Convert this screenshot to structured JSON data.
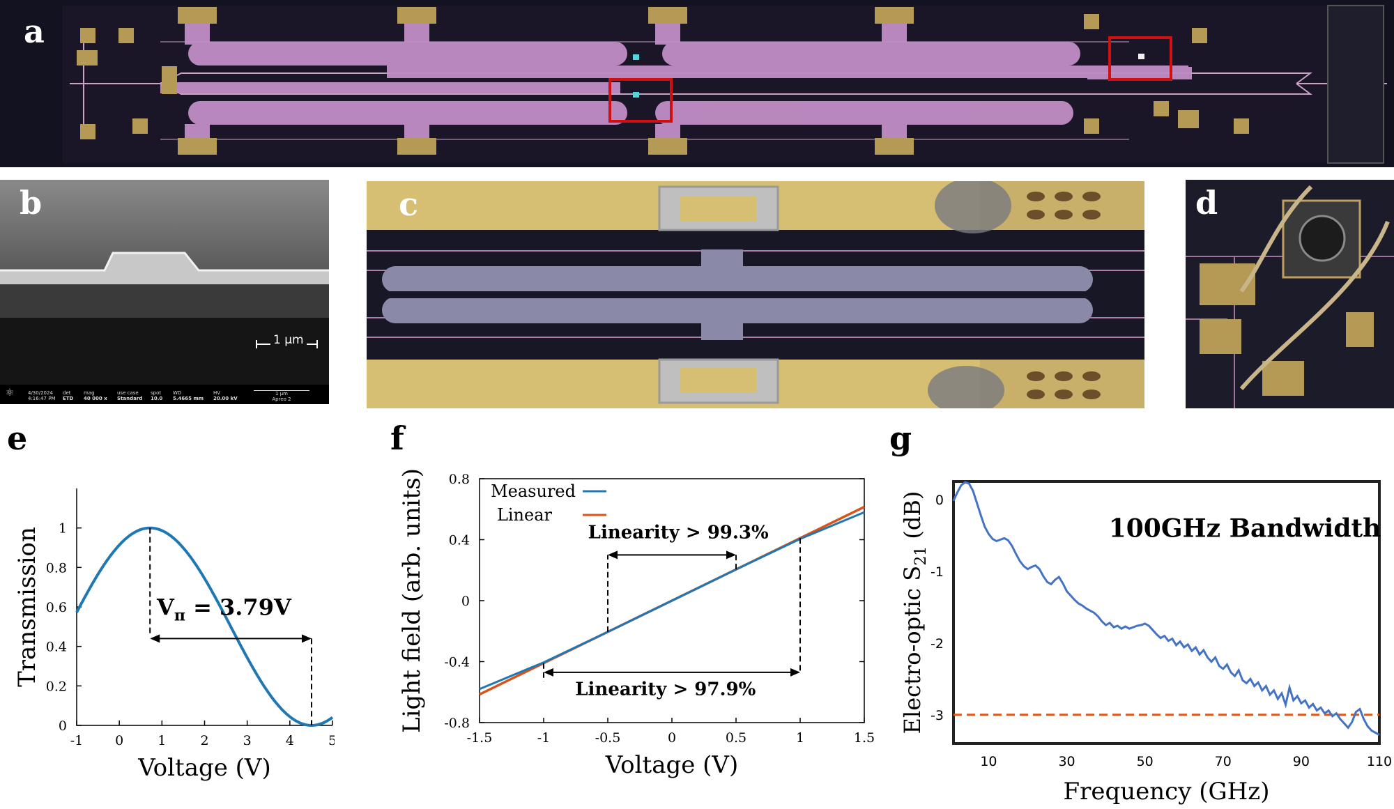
{
  "panels": {
    "a": {
      "label": "a"
    },
    "b": {
      "label": "b",
      "scale_bar": "1 μm",
      "sem_bar": {
        "date": "4/30/2024",
        "time": "4:16:47 PM",
        "det_label": "det",
        "det_value": "ETD",
        "mag_label": "mag",
        "mag_value": "40 000 x",
        "usecase_label": "use case",
        "usecase_value": "Standard",
        "spot_label": "spot",
        "spot_value": "10.0",
        "wd_label": "WD",
        "wd_value": "5.4665 mm",
        "hv_label": "HV",
        "hv_value": "20.00 kV",
        "scale_value": "1 μm",
        "brand": "Apreo 2"
      }
    },
    "c": {
      "label": "c"
    },
    "d": {
      "label": "d"
    }
  },
  "colors": {
    "blue": "#1f77b4",
    "orange": "#d95319",
    "g_blue": "#4472c4",
    "g_dash": "#e0571a"
  },
  "chart_data": [
    {
      "id": "e",
      "label": "e",
      "type": "line",
      "xlabel": "Voltage (V)",
      "ylabel": "Transmission",
      "xlim": [
        -1,
        5
      ],
      "ylim": [
        0,
        1.2
      ],
      "xticks": [
        -1,
        0,
        1,
        2,
        3,
        4,
        5
      ],
      "yticks": [
        0,
        0.2,
        0.4,
        0.6,
        0.8,
        1
      ],
      "ytick_labels": [
        "0",
        "0.2",
        "0.4",
        "0.6",
        "0.8",
        "1"
      ],
      "xtick_labels": [
        "-1",
        "0",
        "1",
        "2",
        "3",
        "4",
        "5"
      ],
      "curve": {
        "model": "0.5*(1+cos(pi*(V-V0)/Vpi))",
        "V0": 0.72,
        "Vpi": 3.79
      },
      "markers": [
        0.72,
        4.51
      ],
      "annotation": {
        "v_sym": "V",
        "v_sub": "π",
        "value": " = 3.79V"
      }
    },
    {
      "id": "f",
      "label": "f",
      "type": "line",
      "xlabel": "Voltage (V)",
      "ylabel": "Light field (arb. units)",
      "xlim": [
        -1.5,
        1.5
      ],
      "ylim": [
        -0.8,
        0.8
      ],
      "xticks": [
        -1.5,
        -1,
        -0.5,
        0,
        0.5,
        1,
        1.5
      ],
      "xtick_labels": [
        "-1.5",
        "-1",
        "-0.5",
        "0",
        "0.5",
        "1",
        "1.5"
      ],
      "yticks": [
        -0.8,
        -0.4,
        0,
        0.4,
        0.8
      ],
      "ytick_labels": [
        "-0.8",
        "-0.4",
        "0",
        "0.4",
        "0.8"
      ],
      "series": [
        {
          "name": "Measured",
          "points": [
            [
              -1.5,
              -0.58
            ],
            [
              -1.0,
              -0.405
            ],
            [
              -0.5,
              -0.205
            ],
            [
              0,
              0.0
            ],
            [
              0.5,
              0.205
            ],
            [
              1.0,
              0.405
            ],
            [
              1.5,
              0.58
            ]
          ]
        },
        {
          "name": "Linear",
          "points": [
            [
              -1.5,
              -0.615
            ],
            [
              1.5,
              0.615
            ]
          ]
        }
      ],
      "annotations": [
        {
          "text": "Linearity > 99.3%",
          "x_from": -0.5,
          "x_to": 0.5
        },
        {
          "text": "Linearity > 97.9%",
          "x_from": -1.0,
          "x_to": 1.0
        }
      ]
    },
    {
      "id": "g",
      "label": "g",
      "type": "line",
      "xlabel": "Frequency (GHz)",
      "ylabel_main": "Electro-optic S",
      "ylabel_sub": "21",
      "ylabel_unit": " (dB)",
      "xlim": [
        1,
        110
      ],
      "ylim": [
        -3.4,
        0.25
      ],
      "xticks": [
        10,
        30,
        50,
        70,
        90,
        110
      ],
      "xtick_labels": [
        "10",
        "30",
        "50",
        "70",
        "90",
        "110"
      ],
      "yticks": [
        0,
        -1,
        -2,
        -3
      ],
      "ytick_labels": [
        "0",
        "-1",
        "-2",
        "-3"
      ],
      "threshold": -3,
      "annotation": "100GHz Bandwidth",
      "series": [
        {
          "name": "S21",
          "points": [
            [
              1,
              -0.02
            ],
            [
              2,
              0.1
            ],
            [
              3,
              0.2
            ],
            [
              4,
              0.24
            ],
            [
              5,
              0.22
            ],
            [
              6,
              0.12
            ],
            [
              7,
              -0.05
            ],
            [
              8,
              -0.22
            ],
            [
              9,
              -0.38
            ],
            [
              10,
              -0.48
            ],
            [
              11,
              -0.55
            ],
            [
              12,
              -0.58
            ],
            [
              13,
              -0.56
            ],
            [
              14,
              -0.54
            ],
            [
              15,
              -0.57
            ],
            [
              16,
              -0.65
            ],
            [
              17,
              -0.76
            ],
            [
              18,
              -0.86
            ],
            [
              19,
              -0.93
            ],
            [
              20,
              -0.97
            ],
            [
              21,
              -0.94
            ],
            [
              22,
              -0.92
            ],
            [
              23,
              -0.97
            ],
            [
              24,
              -1.07
            ],
            [
              25,
              -1.15
            ],
            [
              26,
              -1.18
            ],
            [
              27,
              -1.12
            ],
            [
              28,
              -1.08
            ],
            [
              29,
              -1.17
            ],
            [
              30,
              -1.28
            ],
            [
              31,
              -1.34
            ],
            [
              32,
              -1.4
            ],
            [
              33,
              -1.45
            ],
            [
              34,
              -1.48
            ],
            [
              35,
              -1.52
            ],
            [
              36,
              -1.55
            ],
            [
              37,
              -1.58
            ],
            [
              38,
              -1.63
            ],
            [
              39,
              -1.7
            ],
            [
              40,
              -1.75
            ],
            [
              41,
              -1.72
            ],
            [
              42,
              -1.78
            ],
            [
              43,
              -1.76
            ],
            [
              44,
              -1.8
            ],
            [
              45,
              -1.77
            ],
            [
              46,
              -1.8
            ],
            [
              47,
              -1.78
            ],
            [
              48,
              -1.76
            ],
            [
              49,
              -1.75
            ],
            [
              50,
              -1.73
            ],
            [
              51,
              -1.76
            ],
            [
              52,
              -1.82
            ],
            [
              53,
              -1.88
            ],
            [
              54,
              -1.93
            ],
            [
              55,
              -1.9
            ],
            [
              56,
              -1.97
            ],
            [
              57,
              -1.94
            ],
            [
              58,
              -2.03
            ],
            [
              59,
              -1.98
            ],
            [
              60,
              -2.06
            ],
            [
              61,
              -2.02
            ],
            [
              62,
              -2.11
            ],
            [
              63,
              -2.06
            ],
            [
              64,
              -2.16
            ],
            [
              65,
              -2.1
            ],
            [
              66,
              -2.2
            ],
            [
              67,
              -2.26
            ],
            [
              68,
              -2.2
            ],
            [
              69,
              -2.32
            ],
            [
              70,
              -2.36
            ],
            [
              71,
              -2.3
            ],
            [
              72,
              -2.41
            ],
            [
              73,
              -2.46
            ],
            [
              74,
              -2.38
            ],
            [
              75,
              -2.52
            ],
            [
              76,
              -2.56
            ],
            [
              77,
              -2.5
            ],
            [
              78,
              -2.6
            ],
            [
              79,
              -2.55
            ],
            [
              80,
              -2.66
            ],
            [
              81,
              -2.6
            ],
            [
              82,
              -2.72
            ],
            [
              83,
              -2.66
            ],
            [
              84,
              -2.78
            ],
            [
              85,
              -2.7
            ],
            [
              86,
              -2.86
            ],
            [
              87,
              -2.62
            ],
            [
              88,
              -2.8
            ],
            [
              89,
              -2.74
            ],
            [
              90,
              -2.84
            ],
            [
              91,
              -2.8
            ],
            [
              92,
              -2.9
            ],
            [
              93,
              -2.85
            ],
            [
              94,
              -2.94
            ],
            [
              95,
              -2.9
            ],
            [
              96,
              -2.98
            ],
            [
              97,
              -2.94
            ],
            [
              98,
              -3.02
            ],
            [
              99,
              -2.98
            ],
            [
              100,
              -3.06
            ],
            [
              101,
              -3.12
            ],
            [
              102,
              -3.18
            ],
            [
              103,
              -3.1
            ],
            [
              104,
              -2.96
            ],
            [
              105,
              -2.92
            ],
            [
              106,
              -3.06
            ],
            [
              107,
              -3.16
            ],
            [
              108,
              -3.22
            ],
            [
              109,
              -3.25
            ],
            [
              110,
              -3.28
            ]
          ]
        }
      ]
    }
  ]
}
